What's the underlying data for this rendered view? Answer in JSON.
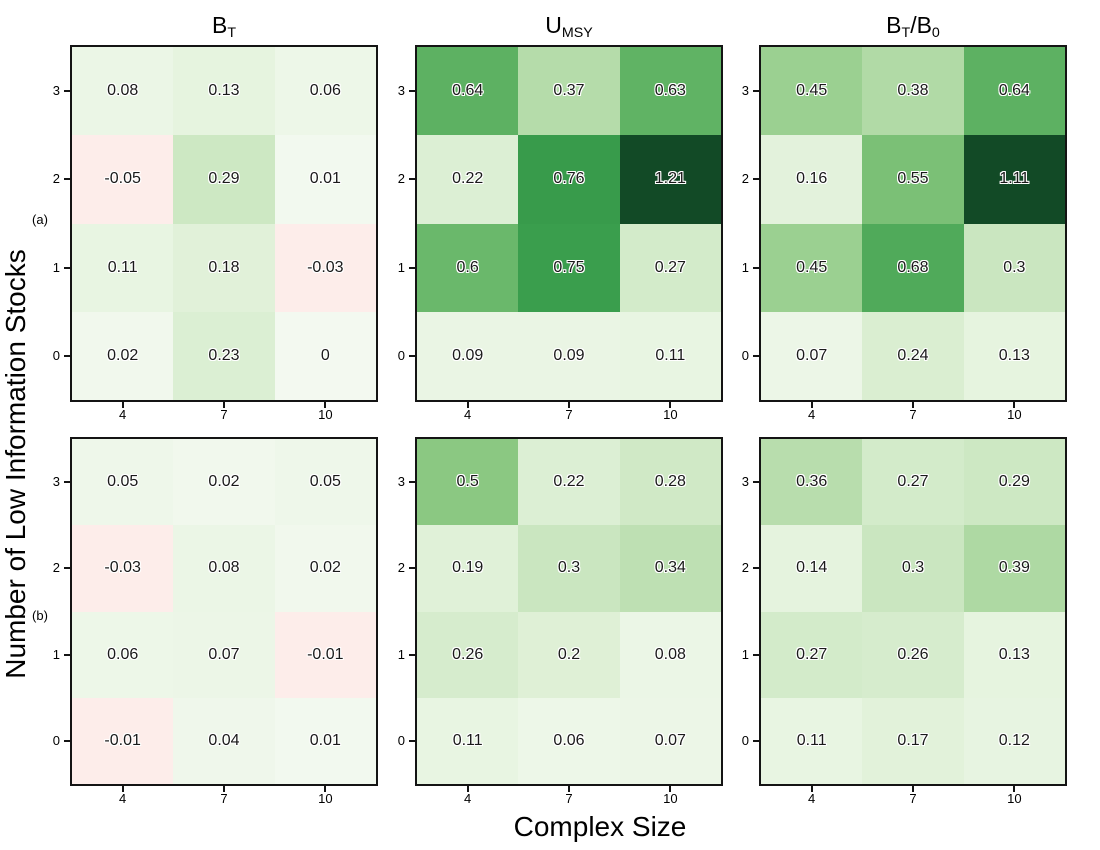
{
  "figure": {
    "background": "#ffffff",
    "x_axis_label": "Complex Size",
    "y_axis_label": "Number of Low Information Stocks",
    "panel_labels": [
      "(a)",
      "(b)"
    ]
  },
  "chart_data": {
    "type": "heatmap",
    "title": "",
    "xlabel": "Complex Size",
    "ylabel": "Number of Low Information Stocks",
    "x_ticks": [
      4,
      7,
      10
    ],
    "y_ticks_top_to_bottom": [
      3,
      2,
      1,
      0
    ],
    "grid": "2 panel rows (a,b) by 3 panel columns",
    "color_scale": {
      "negative_color": "#fdedea",
      "stops": [
        [
          0,
          "#f3f9f0"
        ],
        [
          0.125,
          "#e7f4e0"
        ],
        [
          0.25,
          "#d9eed0"
        ],
        [
          0.375,
          "#b3dba8"
        ],
        [
          0.5,
          "#8bc882"
        ],
        [
          0.625,
          "#62b465"
        ],
        [
          0.75,
          "#3a9e4d"
        ],
        [
          1.0,
          "#124a26"
        ]
      ],
      "clamp": [
        0,
        1
      ]
    },
    "columns": [
      {
        "id": "BT",
        "title_plain": "B_T",
        "title_parts": [
          [
            "B",
            false
          ],
          [
            "T",
            true
          ]
        ]
      },
      {
        "id": "UMSY",
        "title_plain": "U_MSY",
        "title_parts": [
          [
            "U",
            false
          ],
          [
            "MSY",
            true
          ]
        ]
      },
      {
        "id": "BTB0",
        "title_plain": "B_T/B_0",
        "title_parts": [
          [
            "B",
            false
          ],
          [
            "T",
            true
          ],
          [
            "/",
            false
          ],
          [
            "B",
            false
          ],
          [
            "0",
            true
          ]
        ]
      }
    ],
    "rows": [
      {
        "id": "a",
        "label": "(a)"
      },
      {
        "id": "b",
        "label": "(b)"
      }
    ],
    "panels": [
      {
        "row": "a",
        "col": "BT",
        "values": [
          [
            0.08,
            0.13,
            0.06
          ],
          [
            -0.05,
            0.29,
            0.01
          ],
          [
            0.11,
            0.18,
            -0.03
          ],
          [
            0.02,
            0.23,
            0
          ]
        ]
      },
      {
        "row": "a",
        "col": "UMSY",
        "values": [
          [
            0.64,
            0.37,
            0.63
          ],
          [
            0.22,
            0.76,
            1.21
          ],
          [
            0.6,
            0.75,
            0.27
          ],
          [
            0.09,
            0.09,
            0.11
          ]
        ]
      },
      {
        "row": "a",
        "col": "BTB0",
        "values": [
          [
            0.45,
            0.38,
            0.64
          ],
          [
            0.16,
            0.55,
            1.11
          ],
          [
            0.45,
            0.68,
            0.3
          ],
          [
            0.07,
            0.24,
            0.13
          ]
        ]
      },
      {
        "row": "b",
        "col": "BT",
        "values": [
          [
            0.05,
            0.02,
            0.05
          ],
          [
            -0.03,
            0.08,
            0.02
          ],
          [
            0.06,
            0.07,
            -0.01
          ],
          [
            -0.01,
            0.04,
            0.01
          ]
        ]
      },
      {
        "row": "b",
        "col": "UMSY",
        "values": [
          [
            0.5,
            0.22,
            0.28
          ],
          [
            0.19,
            0.3,
            0.34
          ],
          [
            0.26,
            0.2,
            0.08
          ],
          [
            0.11,
            0.06,
            0.07
          ]
        ]
      },
      {
        "row": "b",
        "col": "BTB0",
        "values": [
          [
            0.36,
            0.27,
            0.29
          ],
          [
            0.14,
            0.3,
            0.39
          ],
          [
            0.27,
            0.26,
            0.13
          ],
          [
            0.11,
            0.17,
            0.12
          ]
        ]
      }
    ]
  }
}
